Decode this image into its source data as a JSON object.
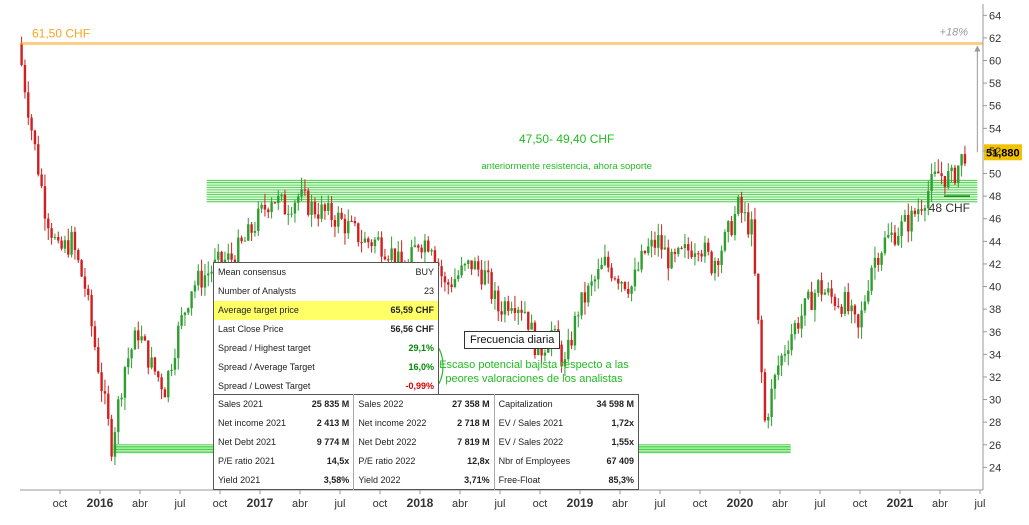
{
  "chart_data": {
    "type": "candlestick",
    "ylim": [
      22,
      65
    ],
    "y_ticks": [
      24,
      26,
      28,
      30,
      32,
      34,
      36,
      38,
      40,
      42,
      44,
      46,
      48,
      50,
      52,
      54,
      56,
      58,
      60,
      62,
      64
    ],
    "x_ticks": [
      "oct",
      "2016",
      "abr",
      "jul",
      "oct",
      "2017",
      "abr",
      "jul",
      "oct",
      "2018",
      "abr",
      "jul",
      "oct",
      "2019",
      "abr",
      "jul",
      "oct",
      "2020",
      "abr",
      "jul",
      "oct",
      "2021",
      "abr",
      "jul"
    ],
    "x_range": [
      "2015-07",
      "2021-07"
    ],
    "series": [
      {
        "date": "2015-07",
        "value": 61.5
      },
      {
        "date": "2015-08",
        "value": 54.0
      },
      {
        "date": "2015-09",
        "value": 47.0
      },
      {
        "date": "2015-10",
        "value": 43.0
      },
      {
        "date": "2015-11",
        "value": 44.0
      },
      {
        "date": "2015-12",
        "value": 40.0
      },
      {
        "date": "2016-01",
        "value": 33.0
      },
      {
        "date": "2016-02",
        "value": 26.0
      },
      {
        "date": "2016-03",
        "value": 33.0
      },
      {
        "date": "2016-04",
        "value": 36.0
      },
      {
        "date": "2016-05",
        "value": 33.0
      },
      {
        "date": "2016-06",
        "value": 31.0
      },
      {
        "date": "2016-07",
        "value": 36.0
      },
      {
        "date": "2016-08",
        "value": 40.0
      },
      {
        "date": "2016-09",
        "value": 41.0
      },
      {
        "date": "2016-10",
        "value": 42.0
      },
      {
        "date": "2016-11",
        "value": 42.5
      },
      {
        "date": "2016-12",
        "value": 44.0
      },
      {
        "date": "2017-01",
        "value": 46.0
      },
      {
        "date": "2017-02",
        "value": 48.0
      },
      {
        "date": "2017-03",
        "value": 47.0
      },
      {
        "date": "2017-04",
        "value": 48.0
      },
      {
        "date": "2017-05",
        "value": 47.0
      },
      {
        "date": "2017-06",
        "value": 46.5
      },
      {
        "date": "2017-07",
        "value": 46.0
      },
      {
        "date": "2017-08",
        "value": 45.0
      },
      {
        "date": "2017-09",
        "value": 44.0
      },
      {
        "date": "2017-10",
        "value": 44.0
      },
      {
        "date": "2017-11",
        "value": 43.0
      },
      {
        "date": "2017-12",
        "value": 41.0
      },
      {
        "date": "2018-01",
        "value": 44.0
      },
      {
        "date": "2018-02",
        "value": 44.0
      },
      {
        "date": "2018-03",
        "value": 40.0
      },
      {
        "date": "2018-04",
        "value": 41.0
      },
      {
        "date": "2018-05",
        "value": 42.0
      },
      {
        "date": "2018-06",
        "value": 41.0
      },
      {
        "date": "2018-07",
        "value": 38.0
      },
      {
        "date": "2018-08",
        "value": 39.0
      },
      {
        "date": "2018-09",
        "value": 38.0
      },
      {
        "date": "2018-10",
        "value": 34.0
      },
      {
        "date": "2018-11",
        "value": 36.0
      },
      {
        "date": "2018-12",
        "value": 33.0
      },
      {
        "date": "2019-01",
        "value": 38.0
      },
      {
        "date": "2019-02",
        "value": 40.0
      },
      {
        "date": "2019-03",
        "value": 42.0
      },
      {
        "date": "2019-04",
        "value": 41.0
      },
      {
        "date": "2019-05",
        "value": 40.0
      },
      {
        "date": "2019-06",
        "value": 43.0
      },
      {
        "date": "2019-07",
        "value": 44.0
      },
      {
        "date": "2019-08",
        "value": 42.0
      },
      {
        "date": "2019-09",
        "value": 43.0
      },
      {
        "date": "2019-10",
        "value": 44.0
      },
      {
        "date": "2019-11",
        "value": 42.0
      },
      {
        "date": "2019-12",
        "value": 44.0
      },
      {
        "date": "2020-01",
        "value": 47.0
      },
      {
        "date": "2020-02",
        "value": 45.0
      },
      {
        "date": "2020-03",
        "value": 28.0
      },
      {
        "date": "2020-04",
        "value": 33.0
      },
      {
        "date": "2020-05",
        "value": 36.0
      },
      {
        "date": "2020-06",
        "value": 38.0
      },
      {
        "date": "2020-07",
        "value": 40.0
      },
      {
        "date": "2020-08",
        "value": 39.0
      },
      {
        "date": "2020-09",
        "value": 38.5
      },
      {
        "date": "2020-10",
        "value": 36.0
      },
      {
        "date": "2020-11",
        "value": 42.0
      },
      {
        "date": "2020-12",
        "value": 44.0
      },
      {
        "date": "2021-01",
        "value": 45.0
      },
      {
        "date": "2021-02",
        "value": 46.0
      },
      {
        "date": "2021-03",
        "value": 48.0
      },
      {
        "date": "2021-04",
        "value": 50.0
      },
      {
        "date": "2021-05",
        "value": 49.5
      },
      {
        "date": "2021-06",
        "value": 51.88
      }
    ],
    "lines": [
      {
        "label": "61,50 CHF",
        "value": 61.5,
        "color": "#f5a623"
      },
      {
        "label": "48 CHF",
        "value": 48.0,
        "color": "#1a7a1a"
      }
    ],
    "zones": [
      {
        "label": "47,50- 49,40 CHF",
        "from": 47.5,
        "to": 49.4,
        "color": "#33cc33",
        "start": "2016-09",
        "end": "2021-06"
      },
      {
        "from": 25.3,
        "to": 26.0,
        "color": "#33cc33",
        "start": "2016-02",
        "end": "2020-04"
      }
    ],
    "annotations": {
      "zone_label": "47,50- 49,40 CHF",
      "zone_sub": "anteriormente resistencia, ahora soporte",
      "target_pct": "+18%",
      "last_price": "51,880",
      "support_label": "48 CHF",
      "note_line1": "Escaso potencial bajista respecto a las",
      "note_line2": "peores valoraciones de los analistas"
    },
    "colors": {
      "up": "#2e9e2e",
      "down": "#d11f1f",
      "zone": "#33cc33",
      "target": "#f5a623",
      "price_tag": "#f2c200"
    }
  },
  "consensus": {
    "rows": [
      {
        "label": "Mean consensus",
        "value": "BUY"
      },
      {
        "label": "Number of Analysts",
        "value": "23"
      },
      {
        "label": "Average target price",
        "value": "65,59 CHF",
        "highlight": true
      },
      {
        "label": "Last Close Price",
        "value": "56,56 CHF"
      },
      {
        "label": "Spread / Highest target",
        "value": "29,1%"
      },
      {
        "label": "Spread / Average Target",
        "value": "16,0%"
      },
      {
        "label": "Spread / Lowest Target",
        "value": "-0,99%"
      }
    ]
  },
  "financials": {
    "rows": [
      [
        {
          "l": "Sales 2021",
          "v": "25 835 M"
        },
        {
          "l": "Sales 2022",
          "v": "27 358 M"
        },
        {
          "l": "Capitalization",
          "v": "34 598 M"
        }
      ],
      [
        {
          "l": "Net income 2021",
          "v": "2 413 M"
        },
        {
          "l": "Net income 2022",
          "v": "2 718 M"
        },
        {
          "l": "EV / Sales 2021",
          "v": "1,72x"
        }
      ],
      [
        {
          "l": "Net Debt 2021",
          "v": "9 774 M"
        },
        {
          "l": "Net Debt 2022",
          "v": "7 819 M"
        },
        {
          "l": "EV / Sales 2022",
          "v": "1,55x"
        }
      ],
      [
        {
          "l": "P/E ratio 2021",
          "v": "14,5x"
        },
        {
          "l": "P/E ratio 2022",
          "v": "12,8x"
        },
        {
          "l": "Nbr of Employees",
          "v": "67 409"
        }
      ],
      [
        {
          "l": "Yield 2021",
          "v": "3,58%"
        },
        {
          "l": "Yield 2022",
          "v": "3,71%"
        },
        {
          "l": "Free-Float",
          "v": "85,3%"
        }
      ]
    ]
  },
  "freq_label": "Frecuencia diaria"
}
